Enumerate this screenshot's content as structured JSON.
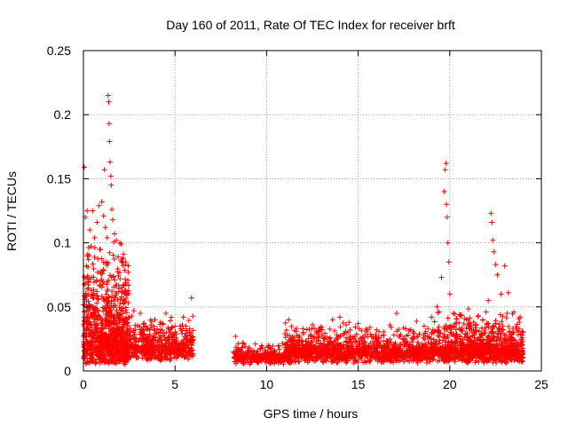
{
  "chart_data": {
    "type": "scatter",
    "title": "Day 160 of 2011, Rate Of TEC Index for receiver brft",
    "xlabel": "GPS time / hours",
    "ylabel": "ROTI / TECUs",
    "xlim": [
      0,
      25
    ],
    "ylim": [
      0,
      0.25
    ],
    "xticks": [
      0,
      5,
      10,
      15,
      20,
      25
    ],
    "xtick_labels": [
      "0",
      "5",
      "10",
      "15",
      "20",
      "25"
    ],
    "yticks": [
      0,
      0.05,
      0.1,
      0.15,
      0.2,
      0.25
    ],
    "ytick_labels": [
      "0",
      "0.05",
      "0.1",
      "0.15",
      "0.2",
      "0.25"
    ],
    "grid": true,
    "marker": "+",
    "marker_color": "#ff0000",
    "series": [
      {
        "name": "ROTI",
        "points": [
          [
            0.05,
            0.159
          ],
          [
            0.1,
            0.12
          ],
          [
            0.2,
            0.125
          ],
          [
            0.3,
            0.09
          ],
          [
            0.35,
            0.11
          ],
          [
            0.5,
            0.125
          ],
          [
            0.6,
            0.104
          ],
          [
            0.75,
            0.116
          ],
          [
            0.85,
            0.129
          ],
          [
            1.0,
            0.132
          ],
          [
            1.1,
            0.121
          ],
          [
            1.2,
            0.112
          ],
          [
            1.3,
            0.104
          ],
          [
            1.35,
            0.215
          ],
          [
            1.38,
            0.21
          ],
          [
            1.4,
            0.193
          ],
          [
            1.42,
            0.179
          ],
          [
            1.45,
            0.163
          ],
          [
            1.5,
            0.152
          ],
          [
            1.52,
            0.145
          ],
          [
            1.55,
            0.126
          ],
          [
            1.6,
            0.118
          ],
          [
            1.7,
            0.107
          ],
          [
            1.8,
            0.102
          ],
          [
            1.9,
            0.089
          ],
          [
            2.0,
            0.072
          ],
          [
            2.1,
            0.065
          ],
          [
            2.2,
            0.055
          ],
          [
            1.15,
            0.157
          ],
          [
            0.9,
            0.095
          ],
          [
            0.25,
            0.081
          ],
          [
            0.45,
            0.073
          ],
          [
            1.25,
            0.085
          ],
          [
            2.5,
            0.042
          ],
          [
            2.75,
            0.047
          ],
          [
            3.1,
            0.045
          ],
          [
            3.4,
            0.035
          ],
          [
            3.9,
            0.04
          ],
          [
            4.2,
            0.038
          ],
          [
            4.5,
            0.045
          ],
          [
            4.8,
            0.042
          ],
          [
            5.0,
            0.035
          ],
          [
            5.4,
            0.036
          ],
          [
            5.8,
            0.033
          ],
          [
            5.9,
            0.057
          ],
          [
            8.3,
            0.027
          ],
          [
            8.7,
            0.022
          ],
          [
            9.2,
            0.016
          ],
          [
            9.6,
            0.012
          ],
          [
            10.1,
            0.011
          ],
          [
            10.6,
            0.012
          ],
          [
            11.0,
            0.014
          ],
          [
            11.2,
            0.04
          ],
          [
            11.5,
            0.023
          ],
          [
            12.0,
            0.03
          ],
          [
            12.5,
            0.036
          ],
          [
            13.0,
            0.034
          ],
          [
            13.6,
            0.04
          ],
          [
            14.0,
            0.042
          ],
          [
            14.5,
            0.038
          ],
          [
            15.0,
            0.037
          ],
          [
            15.5,
            0.032
          ],
          [
            16.0,
            0.032
          ],
          [
            16.4,
            0.028
          ],
          [
            16.8,
            0.034
          ],
          [
            17.1,
            0.045
          ],
          [
            17.6,
            0.033
          ],
          [
            18.0,
            0.031
          ],
          [
            18.6,
            0.035
          ],
          [
            19.0,
            0.042
          ],
          [
            19.3,
            0.05
          ],
          [
            19.55,
            0.073
          ],
          [
            19.7,
            0.14
          ],
          [
            19.75,
            0.157
          ],
          [
            19.8,
            0.162
          ],
          [
            19.82,
            0.13
          ],
          [
            19.85,
            0.12
          ],
          [
            19.9,
            0.1
          ],
          [
            19.95,
            0.085
          ],
          [
            20.0,
            0.06
          ],
          [
            20.2,
            0.045
          ],
          [
            20.6,
            0.043
          ],
          [
            21.0,
            0.036
          ],
          [
            21.4,
            0.034
          ],
          [
            21.8,
            0.04
          ],
          [
            22.1,
            0.055
          ],
          [
            22.25,
            0.123
          ],
          [
            22.3,
            0.116
          ],
          [
            22.35,
            0.102
          ],
          [
            22.4,
            0.093
          ],
          [
            22.5,
            0.083
          ],
          [
            22.6,
            0.075
          ],
          [
            22.8,
            0.06
          ],
          [
            23.0,
            0.082
          ],
          [
            23.2,
            0.061
          ],
          [
            23.5,
            0.046
          ],
          [
            23.8,
            0.038
          ],
          [
            24.0,
            0.03
          ]
        ],
        "dense_clusters": [
          {
            "x_range": [
              0.0,
              2.5
            ],
            "y_base": [
              0.005,
              0.02
            ],
            "y_top": [
              0.03,
              0.105
            ],
            "count": 900
          },
          {
            "x_range": [
              2.5,
              6.0
            ],
            "y_base": [
              0.008,
              0.018
            ],
            "y_top": [
              0.02,
              0.045
            ],
            "count": 520
          },
          {
            "x_range": [
              8.2,
              11.0
            ],
            "y_base": [
              0.005,
              0.012
            ],
            "y_top": [
              0.01,
              0.022
            ],
            "count": 320
          },
          {
            "x_range": [
              11.0,
              19.3
            ],
            "y_base": [
              0.006,
              0.015
            ],
            "y_top": [
              0.015,
              0.04
            ],
            "count": 1200
          },
          {
            "x_range": [
              19.3,
              24.0
            ],
            "y_base": [
              0.006,
              0.015
            ],
            "y_top": [
              0.015,
              0.05
            ],
            "count": 950
          }
        ]
      }
    ]
  }
}
